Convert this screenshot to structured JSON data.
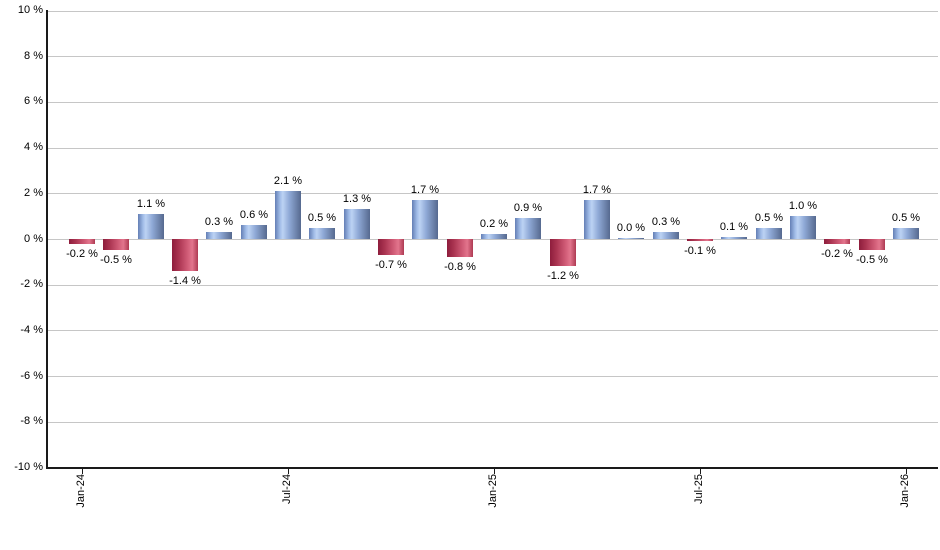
{
  "chart_data": {
    "type": "bar",
    "title": "",
    "unit": "%",
    "values": [
      -0.2,
      -0.5,
      1.1,
      -1.4,
      0.3,
      0.6,
      2.1,
      0.5,
      1.3,
      -0.7,
      1.7,
      -0.8,
      0.2,
      0.9,
      -1.2,
      1.7,
      0.0,
      0.3,
      -0.1,
      0.1,
      0.5,
      1.0,
      -0.2,
      -0.5,
      0.5
    ],
    "bar_labels": [
      "-0.2 %",
      "-0.5 %",
      "1.1 %",
      "-1.4 %",
      "0.3 %",
      "0.6 %",
      "2.1 %",
      "0.5 %",
      "1.3 %",
      "-0.7 %",
      "1.7 %",
      "-0.8 %",
      "0.2 %",
      "0.9 %",
      "-1.2 %",
      "1.7 %",
      "0.0 %",
      "0.3 %",
      "-0.1 %",
      "0.1 %",
      "0.5 %",
      "1.0 %",
      "-0.2 %",
      "-0.5 %",
      "0.5 %"
    ],
    "x_axis": {
      "tick_labels": [
        "Jan-24",
        "Jul-24",
        "Jan-25",
        "Jul-25",
        "Jan-26"
      ],
      "tick_positions": [
        0,
        6,
        12,
        18,
        24
      ]
    },
    "y_axis": {
      "tick_labels": [
        "10 %",
        "8 %",
        "6 %",
        "4 %",
        "2 %",
        "0 %",
        "-2 %",
        "-4 %",
        "-6 %",
        "-8 %",
        "-10 %"
      ],
      "tick_values": [
        10,
        8,
        6,
        4,
        2,
        0,
        -2,
        -4,
        -6,
        -8,
        -10
      ],
      "range": [
        -10,
        10
      ]
    },
    "grid": "horizontal",
    "legend": "none",
    "colors": {
      "positive_bar": "#7d9cd0",
      "positive_gradient": [
        "#647fb5",
        "#a3bee9",
        "#bcd2f3",
        "#8fa9d6",
        "#56698f"
      ],
      "negative_bar": "#c23b58",
      "negative_gradient": [
        "#8e1d3c",
        "#a93350",
        "#d15c77",
        "#e2758d",
        "#ae3a53"
      ],
      "gridline": "#c6c6c6",
      "axis": "#1a1a1a",
      "label_text": "#000000",
      "background": "#ffffff"
    }
  }
}
